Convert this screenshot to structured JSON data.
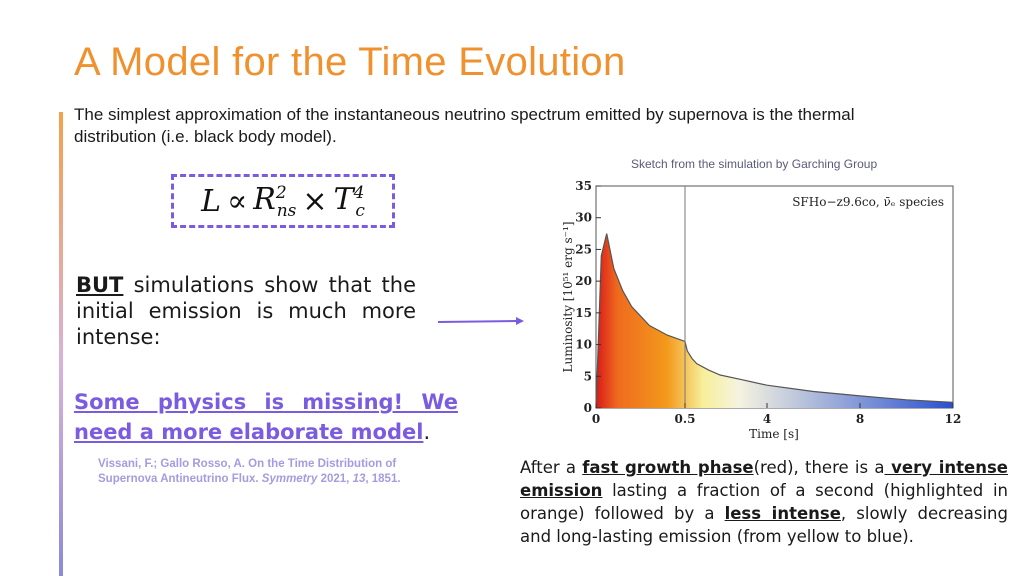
{
  "slide": {
    "title": "A Model for the Time Evolution",
    "intro": "The simplest approximation of the instantaneous neutrino spectrum emitted by supernova is the thermal distribution (i.e. black body model).",
    "formula": {
      "lhs": "L",
      "prop": "∝",
      "r_base": "R",
      "r_sub": "ns",
      "r_sup": "2",
      "times": "×",
      "t_base": "T",
      "t_sub": "c",
      "t_sup": "4"
    },
    "but": {
      "keyword": "BUT",
      "rest": " simulations show that the initial emission is much more intense:"
    },
    "missing": {
      "text": "Some physics is missing! We need a more elaborate model",
      "period": "."
    },
    "reference": {
      "part1": "Vissani, F.; Gallo Rosso, A. On the Time Distribution of Supernova Antineutrino Flux. ",
      "journal": "Symmetry",
      "part2": " 2021, ",
      "volume": "13",
      "part3": ", 1851."
    },
    "caption": "Sketch from the simulation by Garching Group",
    "explanation": {
      "t1": "After a ",
      "b1": "fast growth phase",
      "t2": "(red), there is a",
      "b2": " very intense emission",
      "t3": " lasting a fraction of a second (highlighted in orange) followed by a ",
      "b3": "less intense",
      "t4": ", slowly decreasing and long-lasting emission (from yellow to blue)."
    }
  },
  "chart_data": {
    "type": "area",
    "legend_text": "SFHo−z9.6co, ν̄ₑ species",
    "xlabel": "Time [s]",
    "ylabel": "Luminosity [10⁵¹ erg s⁻¹]",
    "x_ticks": [
      "0",
      "0.5",
      "4",
      "8",
      "12"
    ],
    "y_ticks": [
      "0",
      "5",
      "10",
      "15",
      "20",
      "25",
      "30",
      "35"
    ],
    "ylim": [
      0,
      35
    ],
    "marker_line_x": "0.5",
    "colors": {
      "red": "#d81a1a",
      "orange": "#f39a1c",
      "yellow": "#f7ef9a",
      "blue": "#2a50d0"
    },
    "series": [
      {
        "x": [
          "0",
          "0.03",
          "0.06",
          "0.1",
          "0.15",
          "0.2",
          "0.3",
          "0.4",
          "0.5",
          "0.6",
          "0.8",
          "1",
          "1.5",
          "2",
          "3",
          "4",
          "6",
          "8",
          "10",
          "12"
        ],
        "values": [
          0,
          24,
          27.5,
          22,
          18.5,
          16,
          13,
          11.5,
          10.5,
          9,
          7.8,
          7,
          6,
          5.2,
          4.4,
          3.6,
          2.6,
          1.9,
          1.3,
          0.9
        ]
      }
    ]
  }
}
